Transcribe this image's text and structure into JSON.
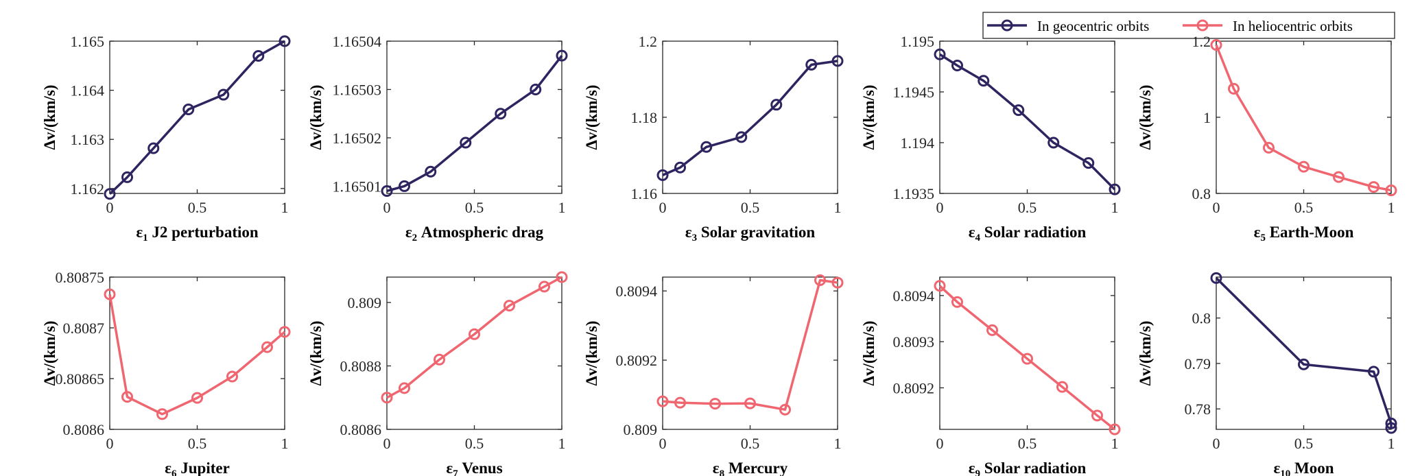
{
  "legend": {
    "items": [
      {
        "label": "In geocentric orbits",
        "color": "#2e2460"
      },
      {
        "label": "In heliocentric orbits",
        "color": "#f06670"
      }
    ]
  },
  "ylabel": "Δv/(km/s)",
  "chart_data": [
    {
      "type": "line",
      "symbol": "ε",
      "sub": "1",
      "title": "J2 perturbation",
      "series": "geo",
      "x": [
        0,
        0.1,
        0.25,
        0.45,
        0.65,
        0.85,
        1
      ],
      "y": [
        1.16189,
        1.16223,
        1.16282,
        1.16361,
        1.16391,
        1.1647,
        1.165
      ],
      "xlim": [
        0,
        1
      ],
      "xticks": [
        0,
        0.5,
        1
      ],
      "xtick_labels": [
        "0",
        "0.5",
        "1"
      ],
      "ylim": [
        1.1619,
        1.165
      ],
      "yticks": [
        1.162,
        1.163,
        1.164,
        1.165
      ],
      "ytick_labels": [
        "1.162",
        "1.163",
        "1.164",
        "1.165"
      ]
    },
    {
      "type": "line",
      "symbol": "ε",
      "sub": "2",
      "title": "Atmospheric drag",
      "series": "geo",
      "x": [
        0,
        0.1,
        0.25,
        0.45,
        0.65,
        0.85,
        1
      ],
      "y": [
        1.165009,
        1.16501,
        1.165013,
        1.165019,
        1.165025,
        1.16503,
        1.165037
      ],
      "xlim": [
        0,
        1
      ],
      "xticks": [
        0,
        0.5,
        1
      ],
      "xtick_labels": [
        "0",
        "0.5",
        "1"
      ],
      "ylim": [
        1.1650085,
        1.16504
      ],
      "yticks": [
        1.16501,
        1.16502,
        1.16503,
        1.16504
      ],
      "ytick_labels": [
        "1.16501",
        "1.16502",
        "1.16503",
        "1.16504"
      ]
    },
    {
      "type": "line",
      "symbol": "ε",
      "sub": "3",
      "title": "Solar gravitation",
      "series": "geo",
      "x": [
        0,
        0.1,
        0.25,
        0.45,
        0.65,
        0.85,
        1
      ],
      "y": [
        1.1648,
        1.1668,
        1.1722,
        1.1748,
        1.1833,
        1.1938,
        1.1948
      ],
      "xlim": [
        0,
        1
      ],
      "xticks": [
        0,
        0.5,
        1
      ],
      "xtick_labels": [
        "0",
        "0.5",
        "1"
      ],
      "ylim": [
        1.16,
        1.2
      ],
      "yticks": [
        1.16,
        1.18,
        1.2
      ],
      "ytick_labels": [
        "1.16",
        "1.18",
        "1.2"
      ]
    },
    {
      "type": "line",
      "symbol": "ε",
      "sub": "4",
      "title": "Solar radiation",
      "series": "geo",
      "x": [
        0,
        0.1,
        0.25,
        0.45,
        0.65,
        0.85,
        1
      ],
      "y": [
        1.19487,
        1.19476,
        1.19461,
        1.19432,
        1.194,
        1.1938,
        1.19354
      ],
      "xlim": [
        0,
        1
      ],
      "xticks": [
        0,
        0.5,
        1
      ],
      "xtick_labels": [
        "0",
        "0.5",
        "1"
      ],
      "ylim": [
        1.1935,
        1.195
      ],
      "yticks": [
        1.1935,
        1.194,
        1.1945,
        1.195
      ],
      "ytick_labels": [
        "1.1935",
        "1.194",
        "1.1945",
        "1.195"
      ]
    },
    {
      "type": "line",
      "symbol": "ε",
      "sub": "5",
      "title": "Earth-Moon",
      "series": "helio",
      "x": [
        0,
        0.1,
        0.3,
        0.5,
        0.7,
        0.9,
        1
      ],
      "y": [
        1.19,
        1.075,
        0.92,
        0.87,
        0.843,
        0.817,
        0.808
      ],
      "xlim": [
        0,
        1
      ],
      "xticks": [
        0,
        0.5,
        1
      ],
      "xtick_labels": [
        "0",
        "0.5",
        "1"
      ],
      "ylim": [
        0.8,
        1.2
      ],
      "yticks": [
        0.8,
        1,
        1.2
      ],
      "ytick_labels": [
        "0.8",
        "1",
        "1.2"
      ]
    },
    {
      "type": "line",
      "symbol": "ε",
      "sub": "6",
      "title": "Jupiter",
      "series": "helio",
      "x": [
        0,
        0.1,
        0.3,
        0.5,
        0.7,
        0.9,
        1
      ],
      "y": [
        0.808733,
        0.808632,
        0.808615,
        0.808631,
        0.808652,
        0.808681,
        0.808696
      ],
      "xlim": [
        0,
        1
      ],
      "xticks": [
        0,
        0.5,
        1
      ],
      "xtick_labels": [
        "0",
        "0.5",
        "1"
      ],
      "ylim": [
        0.8086,
        0.80875
      ],
      "yticks": [
        0.8086,
        0.80865,
        0.8087,
        0.80875
      ],
      "ytick_labels": [
        "0.8086",
        "0.80865",
        "0.8087",
        "0.80875"
      ]
    },
    {
      "type": "line",
      "symbol": "ε",
      "sub": "7",
      "title": "Venus",
      "series": "helio",
      "x": [
        0,
        0.1,
        0.3,
        0.5,
        0.7,
        0.9,
        1
      ],
      "y": [
        0.8087,
        0.80873,
        0.80882,
        0.8089,
        0.80899,
        0.80905,
        0.80908
      ],
      "xlim": [
        0,
        1
      ],
      "xticks": [
        0,
        0.5,
        1
      ],
      "xtick_labels": [
        "0",
        "0.5",
        "1"
      ],
      "ylim": [
        0.8086,
        0.80908
      ],
      "yticks": [
        0.8086,
        0.8088,
        0.809
      ],
      "ytick_labels": [
        "0.8086",
        "0.8088",
        "0.809"
      ]
    },
    {
      "type": "line",
      "symbol": "ε",
      "sub": "8",
      "title": "Mercury",
      "series": "helio",
      "x": [
        0,
        0.1,
        0.3,
        0.5,
        0.7,
        0.9,
        1
      ],
      "y": [
        0.809081,
        0.809077,
        0.809074,
        0.809075,
        0.809057,
        0.809431,
        0.809424
      ],
      "xlim": [
        0,
        1
      ],
      "xticks": [
        0,
        0.5,
        1
      ],
      "xtick_labels": [
        "0",
        "0.5",
        "1"
      ],
      "ylim": [
        0.809,
        0.80944
      ],
      "yticks": [
        0.809,
        0.8092,
        0.8094
      ],
      "ytick_labels": [
        "0.809",
        "0.8092",
        "0.8094"
      ]
    },
    {
      "type": "line",
      "symbol": "ε",
      "sub": "9",
      "title": "Solar radiation",
      "series": "helio",
      "x": [
        0,
        0.1,
        0.3,
        0.5,
        0.7,
        0.9,
        1
      ],
      "y": [
        0.809421,
        0.809386,
        0.809325,
        0.809263,
        0.809202,
        0.80914,
        0.80911
      ],
      "xlim": [
        0,
        1
      ],
      "xticks": [
        0,
        0.5,
        1
      ],
      "xtick_labels": [
        "0",
        "0.5",
        "1"
      ],
      "ylim": [
        0.80911,
        0.80944
      ],
      "yticks": [
        0.8092,
        0.8093,
        0.8094
      ],
      "ytick_labels": [
        "0.8092",
        "0.8093",
        "0.8094"
      ]
    },
    {
      "type": "line",
      "symbol": "ε",
      "sub": "10",
      "title": "Moon",
      "series": "geo",
      "x": [
        0,
        0.5,
        0.9,
        1,
        1
      ],
      "y": [
        0.8088,
        0.7898,
        0.7882,
        0.7768,
        0.7758
      ],
      "xlim": [
        0,
        1
      ],
      "xticks": [
        0,
        0.5,
        1
      ],
      "xtick_labels": [
        "0",
        "0.5",
        "1"
      ],
      "ylim": [
        0.7755,
        0.809
      ],
      "yticks": [
        0.78,
        0.79,
        0.8
      ],
      "ytick_labels": [
        "0.78",
        "0.79",
        "0.8"
      ]
    }
  ]
}
